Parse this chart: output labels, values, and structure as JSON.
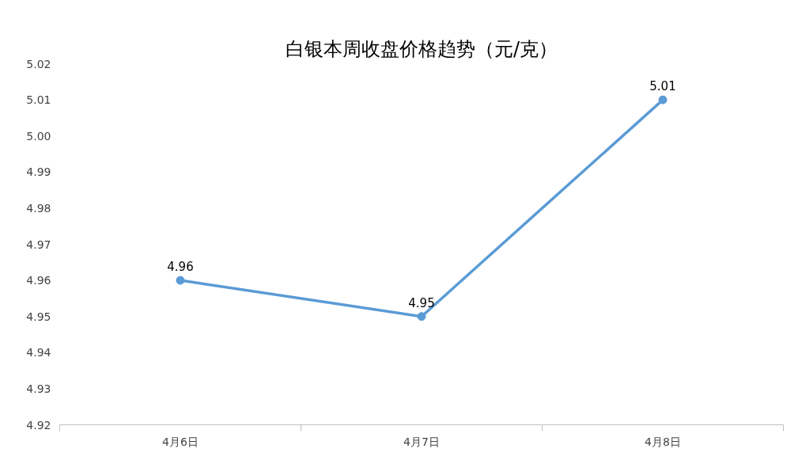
{
  "chart_data": {
    "type": "line",
    "title": "白银本周收盘价格趋势（元/克）",
    "categories": [
      "4月6日",
      "4月7日",
      "4月8日"
    ],
    "series": [
      {
        "color": "#5b9bd5",
        "values": [
          4.96,
          4.95,
          5.01
        ]
      }
    ],
    "ylim": [
      4.92,
      5.02
    ],
    "yticks": [
      {
        "value": 4.92,
        "label": "4.92"
      },
      {
        "value": 4.93,
        "label": "4.93"
      },
      {
        "value": 4.94,
        "label": "4.94"
      },
      {
        "value": 4.95,
        "label": "4.95"
      },
      {
        "value": 4.96,
        "label": "4.96"
      },
      {
        "value": 4.97,
        "label": "4.97"
      },
      {
        "value": 4.98,
        "label": "4.98"
      },
      {
        "value": 4.99,
        "label": "4.99"
      },
      {
        "value": 5.0,
        "label": "5.00"
      },
      {
        "value": 5.01,
        "label": "5.01"
      },
      {
        "value": 5.02,
        "label": "5.02"
      }
    ],
    "grid": false,
    "marker": "circle",
    "line_style": "solid",
    "data_labels": true
  }
}
